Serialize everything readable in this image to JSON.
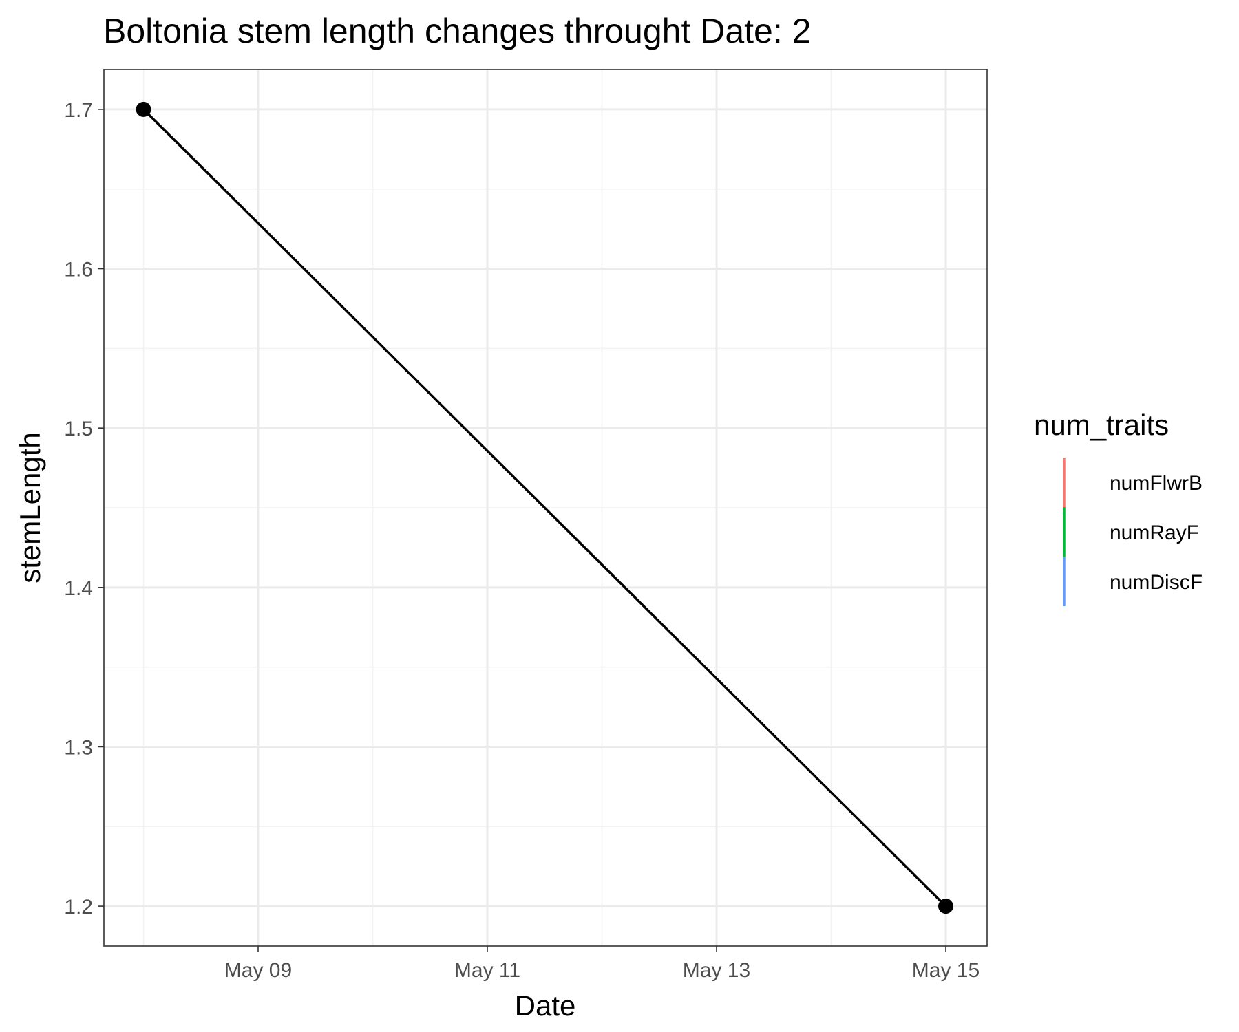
{
  "chart_data": {
    "type": "line",
    "title": "Boltonia stem length changes throught Date:  2",
    "xlabel": "Date",
    "ylabel": "stemLength",
    "x_ticks": [
      "May 09",
      "May 11",
      "May 13",
      "May 15"
    ],
    "y_ticks": [
      "1.2",
      "1.3",
      "1.4",
      "1.5",
      "1.6",
      "1.7"
    ],
    "ylim": [
      1.175,
      1.725
    ],
    "xlim": [
      "May 07 (approx.)",
      "May 15 (approx.)"
    ],
    "grid": true,
    "legend_placement": "right",
    "legend": {
      "title": "num_traits",
      "items": [
        {
          "label": "numFlwrB",
          "color": "#F8766D"
        },
        {
          "label": "numRayF",
          "color": "#00BA38"
        },
        {
          "label": "numDiscF",
          "color": "#619CFF"
        }
      ]
    },
    "series": [
      {
        "color": "#000000",
        "points": [
          {
            "x": "May 08",
            "y": 1.7
          },
          {
            "x": "May 15",
            "y": 1.2
          }
        ]
      }
    ]
  }
}
